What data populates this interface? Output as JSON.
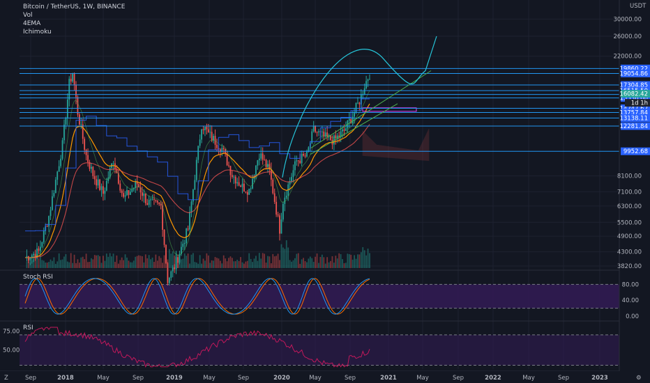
{
  "legend": {
    "title": "Bitcoin / TetherUS, 1W, BINANCE",
    "indicators": [
      "Vol",
      "4EMA",
      "Ichimoku"
    ]
  },
  "currency": "USDT",
  "panels": {
    "stoch": "Stoch RSI",
    "rsi": "RSI"
  },
  "corner_labels": {
    "left": "Z",
    "right": "⚙"
  },
  "colors": {
    "background": "#131722",
    "grid": "#1e2230",
    "hline": "#2196f3",
    "hline_tag": "#2962ff",
    "price_tag": "#26a69a",
    "up": "#26a69a",
    "down": "#ef5350",
    "rsi": "#c2185b",
    "stoch_k": "#2196f3",
    "stoch_d": "#ff6d00",
    "band": "#311b52"
  },
  "chart_data": {
    "type": "candlestick",
    "price_axis": {
      "scale": "log",
      "tick_labels": [
        "30000.00",
        "26000.00",
        "22000.00",
        "8100.00",
        "7100.00",
        "6300.00",
        "5500.00",
        "4900.00",
        "4300.00",
        "3820.00"
      ]
    },
    "horizontal_levels": [
      "19860.22",
      "19054.86",
      "17304.85",
      "16515.50",
      "15988.92",
      "15536.00",
      "14247.62",
      "13757.84",
      "13138.11",
      "12281.84",
      "9952.68"
    ],
    "current_price": "16082.42",
    "timeframe_tag": "1d 1h",
    "time_axis": [
      "Sep",
      "2018",
      "May",
      "Sep",
      "2019",
      "May",
      "Sep",
      "2020",
      "May",
      "Sep",
      "2021",
      "May",
      "Sep",
      "2022",
      "May",
      "Sep",
      "2023"
    ],
    "stoch_rsi": {
      "ticks": [
        "80.00",
        "40.00",
        "0.00"
      ],
      "bands": [
        80,
        20
      ]
    },
    "rsi": {
      "ticks": [
        "75.00",
        "50.00"
      ],
      "bands": [
        70,
        30
      ]
    }
  }
}
